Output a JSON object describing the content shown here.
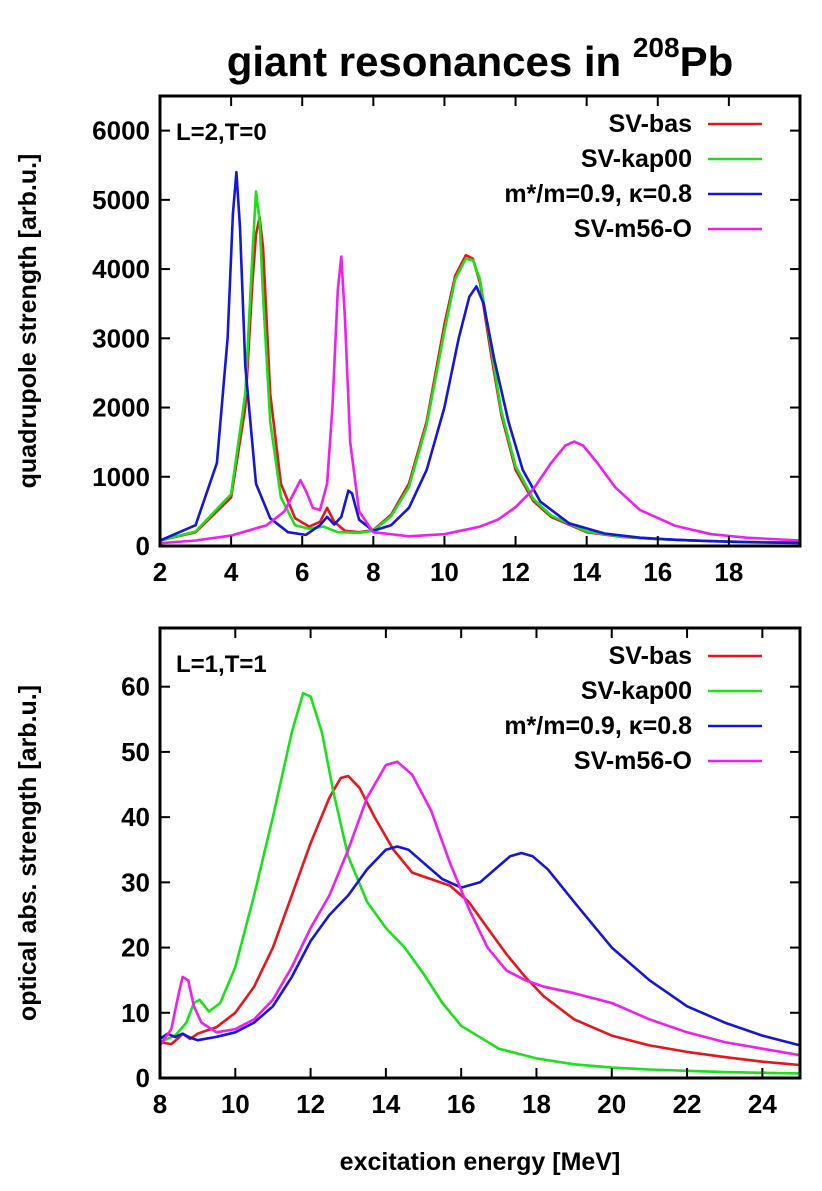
{
  "title": {
    "prefix": "giant resonances in ",
    "superscript": "208",
    "suffix": "Pb"
  },
  "xlabel": "excitation energy [MeV]",
  "chart_data": [
    {
      "type": "line",
      "panel_label": "L=2,T=0",
      "xlabel": "",
      "ylabel": "quadrupole strength [arb.u.]",
      "xlim": [
        2,
        20
      ],
      "ylim": [
        0,
        6500
      ],
      "xticks": [
        2,
        4,
        6,
        8,
        10,
        12,
        14,
        16,
        18
      ],
      "yticks": [
        0,
        1000,
        2000,
        3000,
        4000,
        5000,
        6000
      ],
      "grid": false,
      "legend": "top-right",
      "series": [
        {
          "name": "SV-bas",
          "color": "#e8151b",
          "x": [
            2,
            3,
            4,
            4.4,
            4.6,
            4.7,
            4.8,
            4.9,
            5.1,
            5.4,
            5.8,
            6.2,
            6.5,
            6.7,
            6.9,
            7.2,
            7.6,
            8,
            8.5,
            9,
            9.5,
            10,
            10.3,
            10.6,
            10.8,
            11,
            11.3,
            11.6,
            12,
            12.5,
            13,
            14,
            15,
            16,
            17,
            18,
            19,
            20
          ],
          "y": [
            80,
            200,
            700,
            2000,
            3800,
            4500,
            4750,
            4300,
            2200,
            900,
            400,
            280,
            350,
            550,
            350,
            220,
            200,
            230,
            450,
            900,
            1800,
            3200,
            3900,
            4200,
            4150,
            3800,
            2800,
            1900,
            1100,
            650,
            420,
            200,
            130,
            100,
            80,
            65,
            55,
            50
          ]
        },
        {
          "name": "SV-kap00",
          "color": "#19e219",
          "x": [
            2,
            3,
            4,
            4.4,
            4.6,
            4.7,
            4.8,
            4.9,
            5.1,
            5.4,
            5.8,
            6.2,
            6.6,
            7,
            7.6,
            8,
            8.5,
            9,
            9.5,
            10,
            10.3,
            10.6,
            10.8,
            11,
            11.3,
            11.6,
            12,
            12.5,
            13,
            14,
            15,
            16,
            17,
            18,
            19,
            20
          ],
          "y": [
            80,
            210,
            750,
            2200,
            4200,
            5120,
            4700,
            3600,
            1800,
            700,
            300,
            250,
            280,
            200,
            190,
            220,
            430,
            850,
            1750,
            3100,
            3850,
            4150,
            4130,
            3850,
            2900,
            1950,
            1150,
            680,
            440,
            210,
            135,
            100,
            80,
            65,
            55,
            50
          ]
        },
        {
          "name": "m*/m=0.9, κ=0.8",
          "color": "#1515e0",
          "x": [
            2,
            3,
            3.6,
            3.9,
            4.05,
            4.15,
            4.25,
            4.4,
            4.7,
            5.1,
            5.6,
            6.1,
            6.5,
            6.7,
            6.9,
            7.1,
            7.3,
            7.4,
            7.6,
            8,
            8.5,
            9,
            9.5,
            10,
            10.4,
            10.7,
            10.9,
            11.1,
            11.4,
            11.8,
            12.2,
            12.7,
            13.5,
            14.5,
            15.5,
            16.5,
            17.5,
            18.5,
            20
          ],
          "y": [
            80,
            300,
            1200,
            3000,
            4800,
            5400,
            4600,
            2600,
            900,
            400,
            200,
            160,
            300,
            420,
            310,
            420,
            800,
            760,
            380,
            220,
            300,
            550,
            1100,
            2000,
            3000,
            3600,
            3750,
            3500,
            2700,
            1800,
            1100,
            640,
            330,
            180,
            120,
            90,
            70,
            55,
            45
          ]
        },
        {
          "name": "SV-m56-O",
          "color": "#f01ef0",
          "x": [
            2,
            3,
            4,
            5,
            5.5,
            5.8,
            5.95,
            6.1,
            6.3,
            6.5,
            6.7,
            6.85,
            7,
            7.1,
            7.2,
            7.35,
            7.6,
            8,
            9,
            10,
            11,
            11.5,
            12,
            12.5,
            13,
            13.4,
            13.65,
            13.9,
            14.3,
            14.8,
            15.5,
            16.5,
            17.5,
            18.5,
            20
          ],
          "y": [
            40,
            80,
            150,
            300,
            500,
            800,
            950,
            800,
            550,
            520,
            900,
            2000,
            3700,
            4180,
            3300,
            1500,
            500,
            200,
            140,
            170,
            280,
            380,
            560,
            820,
            1200,
            1450,
            1510,
            1450,
            1200,
            850,
            520,
            290,
            170,
            120,
            80
          ]
        }
      ]
    },
    {
      "type": "line",
      "panel_label": "L=1,T=1",
      "xlabel": "excitation energy [MeV]",
      "ylabel": "optical abs. strength [arb.u.]",
      "xlim": [
        8,
        25
      ],
      "ylim": [
        0,
        69
      ],
      "xticks": [
        8,
        10,
        12,
        14,
        16,
        18,
        20,
        22,
        24
      ],
      "yticks": [
        0,
        10,
        20,
        30,
        40,
        50,
        60
      ],
      "grid": false,
      "legend": "top-right",
      "series": [
        {
          "name": "SV-bas",
          "color": "#e8151b",
          "x": [
            8,
            8.3,
            8.5,
            8.6,
            8.8,
            9,
            9.5,
            10,
            10.5,
            11,
            11.5,
            12,
            12.5,
            12.8,
            13,
            13.3,
            13.7,
            14.2,
            14.7,
            15.2,
            15.7,
            16.2,
            16.7,
            17.2,
            17.7,
            18.2,
            19,
            20,
            21,
            22,
            23,
            24,
            25
          ],
          "y": [
            5.5,
            5.2,
            6.2,
            6.8,
            6,
            6.8,
            7.8,
            10,
            14,
            20,
            28,
            36,
            43,
            46,
            46.3,
            44.5,
            40,
            35,
            31.5,
            30.5,
            29.5,
            27,
            23,
            19,
            15.5,
            12.5,
            9,
            6.5,
            5,
            4,
            3.2,
            2.5,
            2
          ]
        },
        {
          "name": "SV-kap00",
          "color": "#19e219",
          "x": [
            8,
            8.4,
            8.7,
            8.9,
            9.05,
            9.3,
            9.6,
            10,
            10.5,
            11,
            11.5,
            11.8,
            12,
            12.3,
            12.6,
            13,
            13.5,
            14,
            14.5,
            15,
            15.5,
            16,
            17,
            18,
            19,
            20,
            21,
            22,
            23,
            24,
            25
          ],
          "y": [
            5.5,
            6.5,
            8.5,
            11.5,
            12,
            10.2,
            11.5,
            17,
            28,
            40,
            53,
            59,
            58.5,
            53,
            44,
            34,
            27,
            23,
            20,
            16,
            11.5,
            8,
            4.5,
            3,
            2.1,
            1.6,
            1.3,
            1.1,
            0.9,
            0.8,
            0.7
          ]
        },
        {
          "name": "m*/m=0.9, κ=0.8",
          "color": "#1515e0",
          "x": [
            8,
            8.2,
            8.4,
            8.6,
            8.8,
            9,
            9.5,
            10,
            10.5,
            11,
            11.5,
            12,
            12.5,
            13,
            13.5,
            14,
            14.3,
            14.6,
            15,
            15.5,
            16,
            16.5,
            17,
            17.3,
            17.6,
            17.9,
            18.3,
            19,
            20,
            21,
            22,
            23,
            24,
            25
          ],
          "y": [
            6,
            6.8,
            6.3,
            6.8,
            6.2,
            5.8,
            6.3,
            7,
            8.5,
            11,
            15.5,
            21,
            25,
            28,
            32,
            35,
            35.5,
            35,
            33,
            30.5,
            29.2,
            30,
            32.5,
            34,
            34.5,
            34,
            32,
            27,
            20,
            15,
            11,
            8.5,
            6.5,
            5
          ]
        },
        {
          "name": "SV-m56-O",
          "color": "#f01ef0",
          "x": [
            8,
            8.3,
            8.5,
            8.6,
            8.75,
            8.9,
            9.1,
            9.5,
            10,
            10.5,
            11,
            11.5,
            12,
            12.5,
            13,
            13.5,
            14,
            14.3,
            14.7,
            15.2,
            15.7,
            16.2,
            16.7,
            17.2,
            17.7,
            18.2,
            19,
            20,
            21,
            22,
            23,
            24,
            25
          ],
          "y": [
            5,
            7.5,
            13,
            15.5,
            15,
            11,
            8.5,
            7,
            7.5,
            9,
            12,
            17,
            23,
            28,
            35,
            43,
            48,
            48.5,
            46.5,
            41,
            33,
            26,
            20,
            16.5,
            15,
            14,
            13,
            11.5,
            9,
            7,
            5.5,
            4.5,
            3.5
          ]
        }
      ]
    }
  ]
}
